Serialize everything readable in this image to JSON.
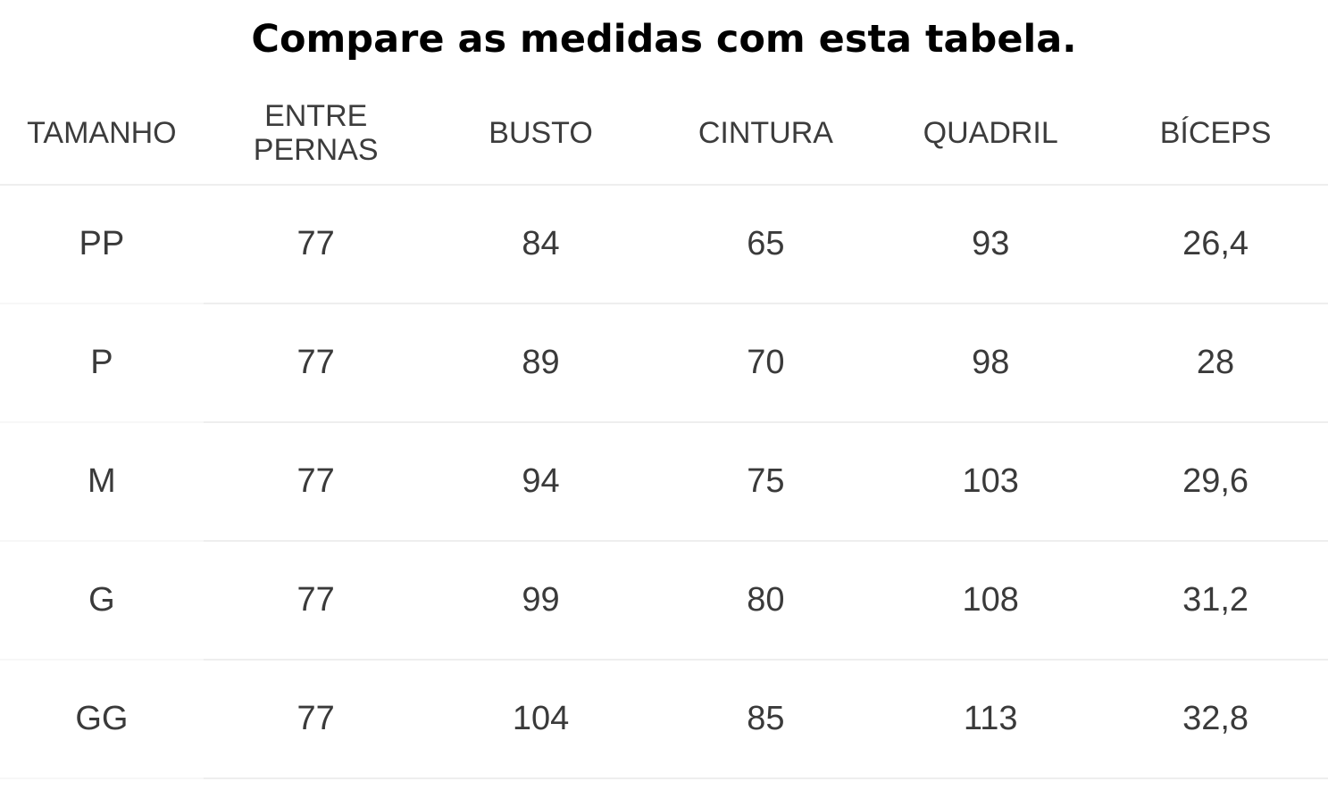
{
  "title": "Compare as medidas com esta tabela.",
  "table": {
    "headers": [
      "TAMANHO",
      "ENTRE\nPERNAS",
      "BUSTO",
      "CINTURA",
      "QUADRIL",
      "BÍCEPS"
    ],
    "rows": [
      [
        "PP",
        "77",
        "84",
        "65",
        "93",
        "26,4"
      ],
      [
        "P",
        "77",
        "89",
        "70",
        "98",
        "28"
      ],
      [
        "M",
        "77",
        "94",
        "75",
        "103",
        "29,6"
      ],
      [
        "G",
        "77",
        "99",
        "80",
        "108",
        "31,2"
      ],
      [
        "GG",
        "77",
        "104",
        "85",
        "113",
        "32,8"
      ]
    ]
  }
}
